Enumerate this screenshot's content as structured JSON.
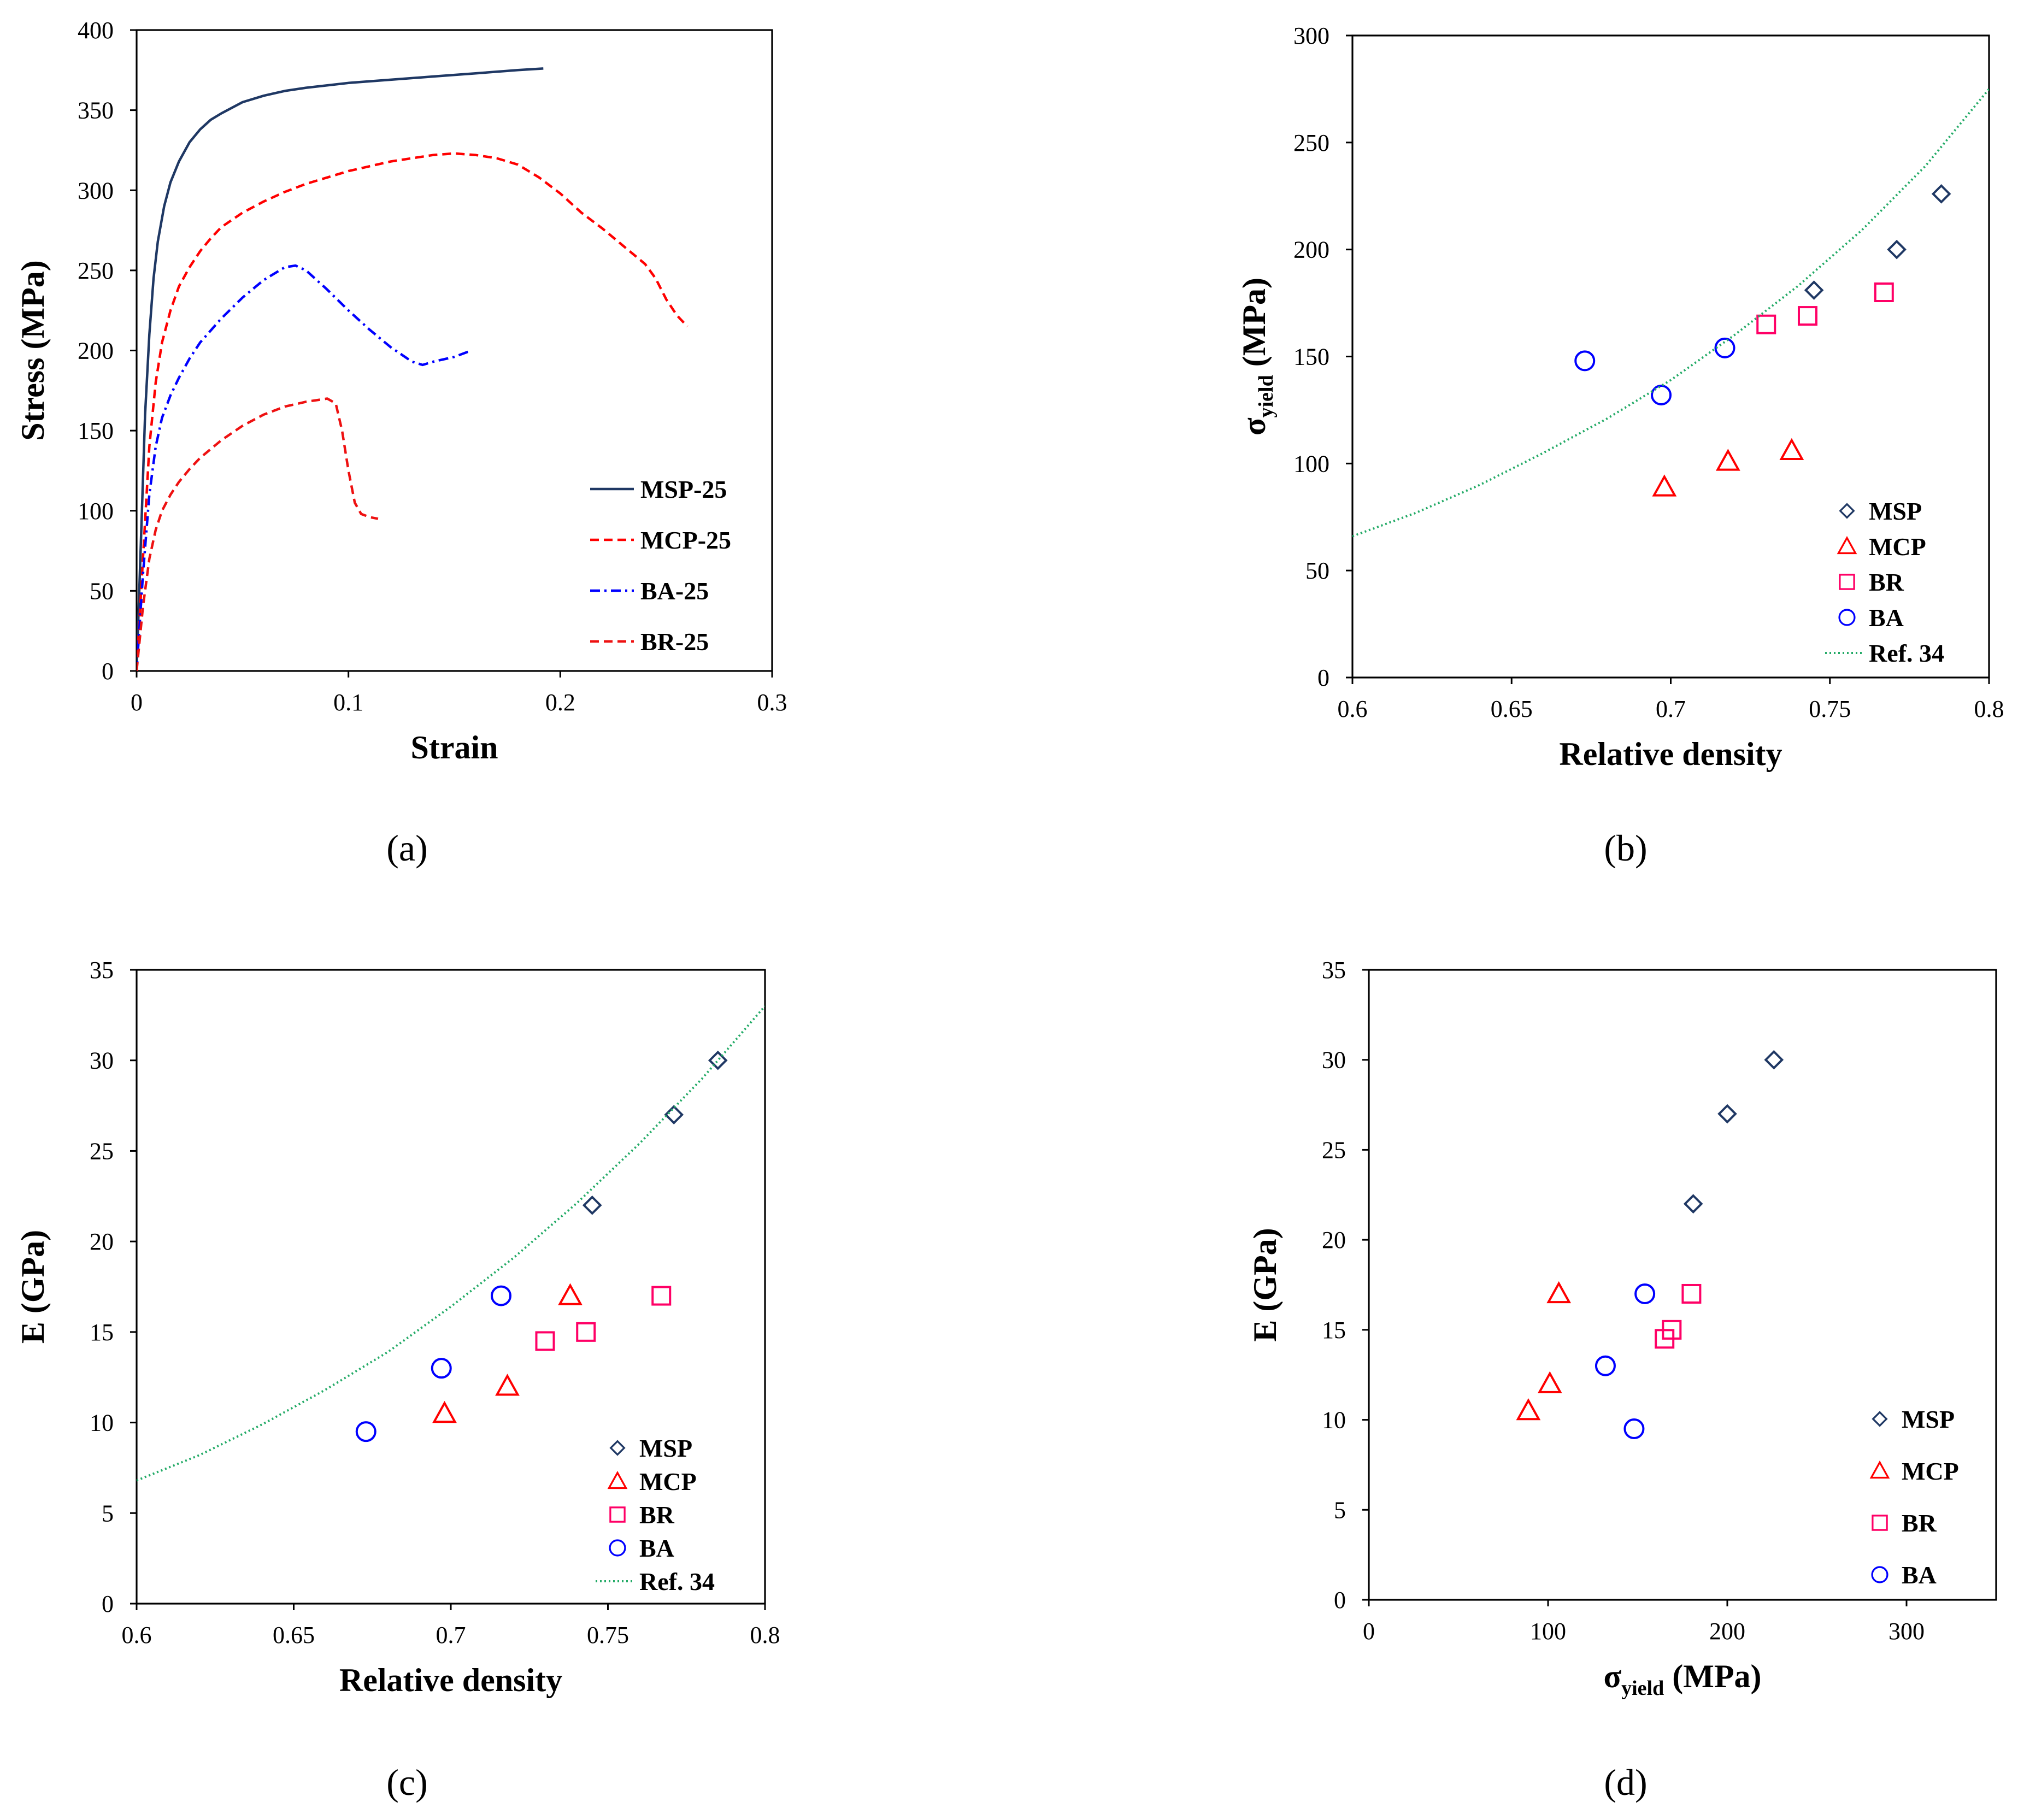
{
  "colors": {
    "MSP": "#1f3864",
    "MCP": "#ff0000",
    "BR": "#ff0066",
    "BA": "#0000ff",
    "ref": "#22aa66",
    "curve_MSP": "#1f3864",
    "curve_MCP": "#ff0000",
    "curve_BA": "#0000ff",
    "curve_BR": "#ee1111"
  },
  "panels": {
    "a": {
      "label": "(a)"
    },
    "b": {
      "label": "(b)"
    },
    "c": {
      "label": "(c)"
    },
    "d": {
      "label": "(d)"
    }
  },
  "chart_data": [
    {
      "id": "a",
      "type": "line",
      "xlabel": "Strain",
      "ylabel": "Stress (MPa)",
      "xlim": [
        0,
        0.3
      ],
      "ylim": [
        0,
        400
      ],
      "xticks": [
        "0",
        "0.1",
        "0.2",
        "0.3"
      ],
      "yticks": [
        "0",
        "50",
        "100",
        "150",
        "200",
        "250",
        "300",
        "350",
        "400"
      ],
      "legend": "right",
      "series": [
        {
          "name": "MSP-25",
          "style": "solid",
          "color_key": "curve_MSP",
          "x": [
            0,
            0.002,
            0.004,
            0.006,
            0.008,
            0.01,
            0.013,
            0.016,
            0.02,
            0.025,
            0.03,
            0.035,
            0.04,
            0.05,
            0.06,
            0.07,
            0.08,
            0.1,
            0.12,
            0.14,
            0.16,
            0.18,
            0.192
          ],
          "y": [
            0,
            80,
            160,
            210,
            245,
            268,
            290,
            305,
            318,
            330,
            338,
            344,
            348,
            355,
            359,
            362,
            364,
            367,
            369,
            371,
            373,
            375,
            376
          ]
        },
        {
          "name": "MCP-25",
          "style": "dash",
          "color_key": "curve_MCP",
          "x": [
            0,
            0.003,
            0.006,
            0.009,
            0.012,
            0.016,
            0.02,
            0.025,
            0.03,
            0.035,
            0.04,
            0.05,
            0.06,
            0.07,
            0.08,
            0.09,
            0.1,
            0.11,
            0.12,
            0.13,
            0.14,
            0.15,
            0.16,
            0.17,
            0.18,
            0.19,
            0.2,
            0.21,
            0.22,
            0.23,
            0.24,
            0.245,
            0.25,
            0.255,
            0.26
          ],
          "y": [
            0,
            70,
            140,
            180,
            205,
            225,
            240,
            252,
            262,
            270,
            277,
            286,
            293,
            299,
            304,
            308,
            312,
            315,
            318,
            320,
            322,
            323,
            322,
            320,
            316,
            308,
            298,
            286,
            276,
            265,
            254,
            245,
            232,
            222,
            215
          ]
        },
        {
          "name": "BA-25",
          "style": "dashdot",
          "color_key": "curve_BA",
          "x": [
            0,
            0.003,
            0.006,
            0.009,
            0.012,
            0.016,
            0.02,
            0.025,
            0.03,
            0.04,
            0.05,
            0.06,
            0.07,
            0.075,
            0.08,
            0.09,
            0.1,
            0.11,
            0.12,
            0.13,
            0.135,
            0.14,
            0.15,
            0.158
          ],
          "y": [
            0,
            60,
            110,
            140,
            158,
            172,
            183,
            195,
            205,
            220,
            233,
            244,
            252,
            253,
            250,
            238,
            225,
            213,
            202,
            193,
            191,
            193,
            196,
            200
          ]
        },
        {
          "name": "BR-25",
          "style": "dash",
          "color_key": "curve_BR",
          "x": [
            0,
            0.003,
            0.006,
            0.009,
            0.012,
            0.016,
            0.02,
            0.025,
            0.03,
            0.04,
            0.05,
            0.06,
            0.07,
            0.08,
            0.09,
            0.094,
            0.097,
            0.1,
            0.103,
            0.106,
            0.11,
            0.114
          ],
          "y": [
            0,
            40,
            70,
            88,
            100,
            110,
            118,
            126,
            133,
            144,
            153,
            160,
            165,
            168,
            170,
            167,
            150,
            125,
            105,
            98,
            96,
            95
          ]
        }
      ]
    },
    {
      "id": "b",
      "type": "scatter",
      "xlabel": "Relative density",
      "ylabel": "σyield (MPa)",
      "ylabel_main": "σ",
      "ylabel_sub": "yield",
      "ylabel_unit": "(MPa)",
      "xlim": [
        0.6,
        0.8
      ],
      "ylim": [
        0,
        300
      ],
      "xticks": [
        "0.6",
        "0.65",
        "0.7",
        "0.75",
        "0.8"
      ],
      "yticks": [
        "0",
        "50",
        "100",
        "150",
        "200",
        "250",
        "300"
      ],
      "legend": "bottom-right",
      "series": [
        {
          "name": "MSP",
          "marker": "diamond",
          "color_key": "MSP",
          "x": [
            0.745,
            0.771,
            0.785
          ],
          "y": [
            181,
            200,
            226
          ]
        },
        {
          "name": "MCP",
          "marker": "triangle",
          "color_key": "MCP",
          "x": [
            0.698,
            0.718,
            0.738
          ],
          "y": [
            89,
            101,
            106
          ]
        },
        {
          "name": "BR",
          "marker": "square",
          "color_key": "BR",
          "x": [
            0.73,
            0.743,
            0.767
          ],
          "y": [
            165,
            169,
            180
          ]
        },
        {
          "name": "BA",
          "marker": "circle",
          "color_key": "BA",
          "x": [
            0.673,
            0.697,
            0.717
          ],
          "y": [
            148,
            132,
            154
          ]
        },
        {
          "name": "Ref. 34",
          "marker": "dotline",
          "color_key": "ref",
          "x": [
            0.6,
            0.62,
            0.64,
            0.66,
            0.68,
            0.7,
            0.72,
            0.74,
            0.76,
            0.78,
            0.8
          ],
          "y": [
            66,
            77,
            90,
            105,
            121,
            139,
            160,
            183,
            209,
            239,
            275
          ]
        }
      ]
    },
    {
      "id": "c",
      "type": "scatter",
      "xlabel": "Relative density",
      "ylabel": "E (GPa)",
      "xlim": [
        0.6,
        0.8
      ],
      "ylim": [
        0,
        35
      ],
      "xticks": [
        "0.6",
        "0.65",
        "0.7",
        "0.75",
        "0.8"
      ],
      "yticks": [
        "0",
        "5",
        "10",
        "15",
        "20",
        "25",
        "30",
        "35"
      ],
      "legend": "bottom-right",
      "series": [
        {
          "name": "MSP",
          "marker": "diamond",
          "color_key": "MSP",
          "x": [
            0.745,
            0.771,
            0.785
          ],
          "y": [
            22,
            27,
            30
          ]
        },
        {
          "name": "MCP",
          "marker": "triangle",
          "color_key": "MCP",
          "x": [
            0.698,
            0.718,
            0.738
          ],
          "y": [
            10.5,
            12,
            17
          ]
        },
        {
          "name": "BR",
          "marker": "square",
          "color_key": "BR",
          "x": [
            0.73,
            0.743,
            0.767
          ],
          "y": [
            14.5,
            15,
            17
          ]
        },
        {
          "name": "BA",
          "marker": "circle",
          "color_key": "BA",
          "x": [
            0.673,
            0.697,
            0.716
          ],
          "y": [
            9.5,
            13,
            17
          ]
        },
        {
          "name": "Ref. 34",
          "marker": "dotline",
          "color_key": "ref",
          "x": [
            0.6,
            0.62,
            0.64,
            0.66,
            0.68,
            0.7,
            0.72,
            0.74,
            0.76,
            0.78,
            0.8
          ],
          "y": [
            6.8,
            8.2,
            9.9,
            11.8,
            13.9,
            16.4,
            19.1,
            22.1,
            25.4,
            29,
            33
          ]
        }
      ]
    },
    {
      "id": "d",
      "type": "scatter",
      "xlabel": "σyield (MPa)",
      "xlabel_main": "σ",
      "xlabel_sub": "yield",
      "xlabel_unit": "(MPa)",
      "ylabel": "E (GPa)",
      "xlim": [
        0,
        350
      ],
      "ylim": [
        0,
        35
      ],
      "xticks": [
        "0",
        "100",
        "200",
        "300"
      ],
      "yticks": [
        "0",
        "5",
        "10",
        "15",
        "20",
        "25",
        "30",
        "35"
      ],
      "legend": "right",
      "series": [
        {
          "name": "MSP",
          "marker": "diamond",
          "color_key": "MSP",
          "x": [
            181,
            200,
            226
          ],
          "y": [
            22,
            27,
            30
          ]
        },
        {
          "name": "MCP",
          "marker": "triangle",
          "color_key": "MCP",
          "x": [
            89,
            101,
            106
          ],
          "y": [
            10.5,
            12,
            17
          ]
        },
        {
          "name": "BR",
          "marker": "square",
          "color_key": "BR",
          "x": [
            165,
            169,
            180
          ],
          "y": [
            14.5,
            15,
            17
          ]
        },
        {
          "name": "BA",
          "marker": "circle",
          "color_key": "BA",
          "x": [
            148,
            132,
            154
          ],
          "y": [
            9.5,
            13,
            17
          ]
        }
      ]
    }
  ]
}
